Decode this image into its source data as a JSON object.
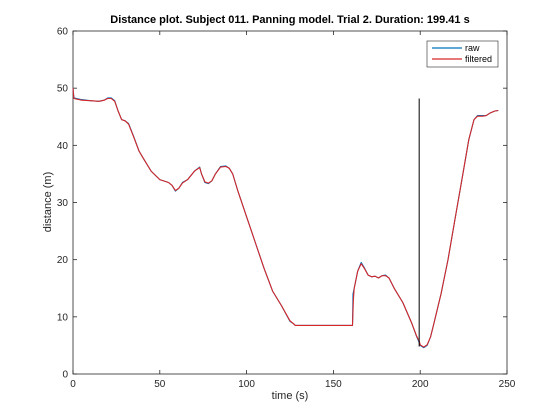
{
  "chart_data": {
    "type": "line",
    "title": "Distance plot. Subject 011. Panning model. Trial 2. Duration: 199.41 s",
    "xlabel": "time (s)",
    "ylabel": "distance (m)",
    "xlim": [
      0,
      250
    ],
    "ylim": [
      0,
      60
    ],
    "xticks": [
      0,
      50,
      100,
      150,
      200,
      250
    ],
    "yticks": [
      0,
      10,
      20,
      30,
      40,
      50,
      60
    ],
    "grid": false,
    "legend_position": "top-right",
    "series": [
      {
        "name": "raw",
        "color": "#0072BD",
        "points": [
          [
            0,
            50
          ],
          [
            0.5,
            48.3
          ],
          [
            5,
            48
          ],
          [
            10,
            47.8
          ],
          [
            15,
            47.7
          ],
          [
            18,
            47.9
          ],
          [
            20,
            48.3
          ],
          [
            22,
            48.3
          ],
          [
            24,
            47.8
          ],
          [
            26,
            46
          ],
          [
            28,
            44.5
          ],
          [
            30,
            44.3
          ],
          [
            32,
            43.8
          ],
          [
            35,
            41.5
          ],
          [
            38,
            39
          ],
          [
            40,
            38
          ],
          [
            45,
            35.5
          ],
          [
            50,
            34
          ],
          [
            55,
            33.5
          ],
          [
            57,
            33
          ],
          [
            59,
            32
          ],
          [
            61,
            32.5
          ],
          [
            63,
            33.5
          ],
          [
            66,
            34
          ],
          [
            70,
            35.5
          ],
          [
            73,
            36.2
          ],
          [
            74,
            35
          ],
          [
            76,
            33.5
          ],
          [
            78,
            33.3
          ],
          [
            80,
            33.8
          ],
          [
            82,
            35
          ],
          [
            85,
            36.3
          ],
          [
            88,
            36.4
          ],
          [
            90,
            36
          ],
          [
            92,
            35
          ],
          [
            95,
            32
          ],
          [
            100,
            27.5
          ],
          [
            105,
            23
          ],
          [
            110,
            18.5
          ],
          [
            115,
            14.5
          ],
          [
            120,
            12
          ],
          [
            125,
            9.2
          ],
          [
            127,
            8.8
          ],
          [
            128,
            8.5
          ],
          [
            135,
            8.5
          ],
          [
            145,
            8.5
          ],
          [
            155,
            8.5
          ],
          [
            161,
            8.5
          ],
          [
            161.3,
            14
          ],
          [
            162,
            15
          ],
          [
            164,
            18
          ],
          [
            166,
            19.5
          ],
          [
            168,
            18.5
          ],
          [
            170,
            17.3
          ],
          [
            172,
            17
          ],
          [
            174,
            17.1
          ],
          [
            176,
            16.8
          ],
          [
            178,
            17.2
          ],
          [
            180,
            17.3
          ],
          [
            182,
            16.8
          ],
          [
            185,
            15
          ],
          [
            190,
            12.5
          ],
          [
            195,
            9
          ],
          [
            198,
            6.5
          ],
          [
            199.5,
            5.5
          ],
          [
            200,
            5
          ],
          [
            202,
            4.6
          ],
          [
            204,
            5
          ],
          [
            206,
            6.5
          ],
          [
            208,
            9
          ],
          [
            212,
            14
          ],
          [
            216,
            20
          ],
          [
            220,
            27
          ],
          [
            224,
            34
          ],
          [
            228,
            41
          ],
          [
            231,
            44.5
          ],
          [
            233,
            45.2
          ],
          [
            236,
            45.2
          ],
          [
            238,
            45.2
          ],
          [
            240,
            45.6
          ],
          [
            243,
            46
          ],
          [
            245,
            46.1
          ]
        ]
      },
      {
        "name": "filtered",
        "color": "#D62728",
        "points": [
          [
            0,
            50
          ],
          [
            0.5,
            48.2
          ],
          [
            5,
            47.9
          ],
          [
            10,
            47.8
          ],
          [
            15,
            47.7
          ],
          [
            18,
            47.9
          ],
          [
            20,
            48.2
          ],
          [
            22,
            48.2
          ],
          [
            24,
            47.7
          ],
          [
            26,
            46
          ],
          [
            28,
            44.5
          ],
          [
            30,
            44.3
          ],
          [
            32,
            43.7
          ],
          [
            35,
            41.4
          ],
          [
            38,
            39
          ],
          [
            40,
            38
          ],
          [
            45,
            35.5
          ],
          [
            50,
            34
          ],
          [
            55,
            33.5
          ],
          [
            57,
            33
          ],
          [
            59,
            32.1
          ],
          [
            61,
            32.5
          ],
          [
            63,
            33.4
          ],
          [
            66,
            34
          ],
          [
            70,
            35.5
          ],
          [
            73,
            36.1
          ],
          [
            74,
            35
          ],
          [
            76,
            33.6
          ],
          [
            78,
            33.4
          ],
          [
            80,
            33.8
          ],
          [
            82,
            35
          ],
          [
            85,
            36.2
          ],
          [
            88,
            36.3
          ],
          [
            90,
            36
          ],
          [
            92,
            35
          ],
          [
            95,
            32
          ],
          [
            100,
            27.5
          ],
          [
            105,
            23
          ],
          [
            110,
            18.5
          ],
          [
            115,
            14.5
          ],
          [
            120,
            12
          ],
          [
            125,
            9.3
          ],
          [
            127,
            8.8
          ],
          [
            128,
            8.5
          ],
          [
            135,
            8.5
          ],
          [
            145,
            8.5
          ],
          [
            155,
            8.5
          ],
          [
            161,
            8.5
          ],
          [
            161.5,
            13
          ],
          [
            162,
            15
          ],
          [
            164,
            18
          ],
          [
            166,
            19.3
          ],
          [
            168,
            18.4
          ],
          [
            170,
            17.3
          ],
          [
            172,
            17
          ],
          [
            174,
            17.1
          ],
          [
            176,
            16.8
          ],
          [
            178,
            17.2
          ],
          [
            180,
            17.2
          ],
          [
            182,
            16.8
          ],
          [
            185,
            15
          ],
          [
            190,
            12.5
          ],
          [
            195,
            9
          ],
          [
            198,
            6.6
          ],
          [
            199.5,
            5.7
          ],
          [
            200,
            5.1
          ],
          [
            202,
            4.7
          ],
          [
            204,
            5.1
          ],
          [
            206,
            6.5
          ],
          [
            208,
            9
          ],
          [
            212,
            14
          ],
          [
            216,
            20
          ],
          [
            220,
            27
          ],
          [
            224,
            34
          ],
          [
            228,
            41
          ],
          [
            231,
            44.5
          ],
          [
            233,
            45.1
          ],
          [
            236,
            45.1
          ],
          [
            238,
            45.2
          ],
          [
            240,
            45.6
          ],
          [
            243,
            46
          ],
          [
            245,
            46.1
          ]
        ]
      }
    ],
    "annotations": [
      {
        "type": "vertical_line",
        "x": 199.41,
        "y_from": 4.8,
        "y_to": 48.2,
        "color": "#000000"
      }
    ]
  }
}
